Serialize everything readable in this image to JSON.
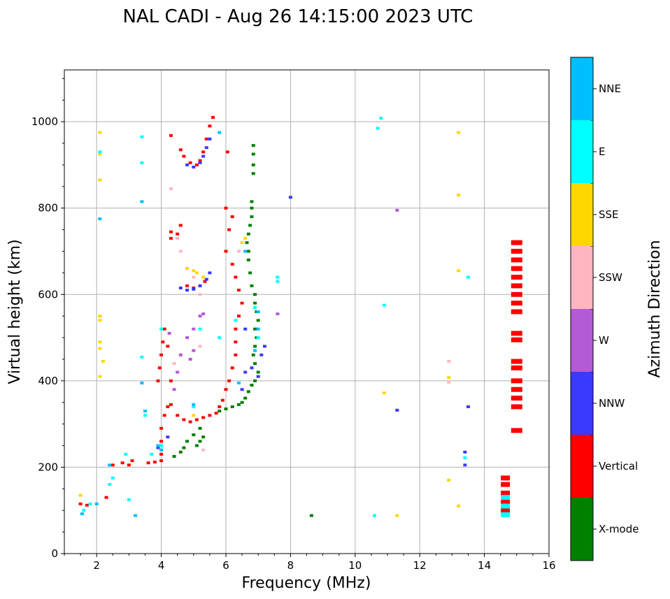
{
  "chart_data": {
    "type": "scatter",
    "title": "NAL CADI - Aug 26 14:15:00 2023 UTC",
    "xlabel": "Frequency (MHz)",
    "ylabel": "Virtual height (km)",
    "xlim": [
      1,
      16
    ],
    "ylim": [
      0,
      1120
    ],
    "xticks": [
      2,
      4,
      6,
      8,
      10,
      12,
      14,
      16
    ],
    "yticks": [
      0,
      200,
      400,
      600,
      800,
      1000
    ],
    "grid": true,
    "colorbar": {
      "title": "Azimuth Direction",
      "categories": [
        {
          "name": "X-mode",
          "color": "#008000"
        },
        {
          "name": "Vertical",
          "color": "#ff0000"
        },
        {
          "name": "NNW",
          "color": "#3a3aff"
        },
        {
          "name": "W",
          "color": "#b35ad6"
        },
        {
          "name": "SSW",
          "color": "#ffb6c1"
        },
        {
          "name": "SSE",
          "color": "#ffd700"
        },
        {
          "name": "E",
          "color": "#00ffff"
        },
        {
          "name": "NNE",
          "color": "#00bfff"
        }
      ]
    },
    "series": [
      {
        "name": "X-mode",
        "points": [
          [
            4.4,
            225
          ],
          [
            4.6,
            235
          ],
          [
            4.7,
            245
          ],
          [
            4.8,
            260
          ],
          [
            5.0,
            275
          ],
          [
            5.2,
            290
          ],
          [
            5.3,
            270
          ],
          [
            5.2,
            260
          ],
          [
            5.1,
            250
          ],
          [
            5.8,
            330
          ],
          [
            6.0,
            335
          ],
          [
            6.2,
            340
          ],
          [
            6.4,
            345
          ],
          [
            6.5,
            350
          ],
          [
            6.6,
            360
          ],
          [
            6.7,
            375
          ],
          [
            6.8,
            390
          ],
          [
            6.9,
            400
          ],
          [
            7.0,
            420
          ],
          [
            6.9,
            440
          ],
          [
            6.85,
            460
          ],
          [
            6.9,
            480
          ],
          [
            6.95,
            500
          ],
          [
            6.9,
            520
          ],
          [
            7.0,
            540
          ],
          [
            6.95,
            560
          ],
          [
            6.9,
            580
          ],
          [
            6.9,
            600
          ],
          [
            6.8,
            620
          ],
          [
            6.75,
            650
          ],
          [
            6.7,
            680
          ],
          [
            6.7,
            700
          ],
          [
            6.65,
            720
          ],
          [
            6.7,
            740
          ],
          [
            6.75,
            760
          ],
          [
            6.8,
            780
          ],
          [
            6.8,
            800
          ],
          [
            6.8,
            815
          ],
          [
            6.85,
            880
          ],
          [
            6.85,
            900
          ],
          [
            6.85,
            925
          ],
          [
            6.85,
            945
          ],
          [
            8.65,
            88
          ]
        ]
      },
      {
        "name": "Vertical",
        "points": [
          [
            1.5,
            115
          ],
          [
            1.7,
            112
          ],
          [
            2.3,
            130
          ],
          [
            2.5,
            205
          ],
          [
            2.8,
            210
          ],
          [
            3.0,
            205
          ],
          [
            3.1,
            215
          ],
          [
            3.6,
            210
          ],
          [
            3.8,
            212
          ],
          [
            4.0,
            215
          ],
          [
            4.0,
            230
          ],
          [
            4.0,
            260
          ],
          [
            4.0,
            290
          ],
          [
            4.1,
            320
          ],
          [
            4.2,
            340
          ],
          [
            4.3,
            345
          ],
          [
            4.5,
            320
          ],
          [
            4.7,
            310
          ],
          [
            4.9,
            305
          ],
          [
            5.1,
            310
          ],
          [
            5.3,
            315
          ],
          [
            5.5,
            320
          ],
          [
            5.7,
            325
          ],
          [
            5.8,
            340
          ],
          [
            5.9,
            355
          ],
          [
            6.0,
            380
          ],
          [
            6.1,
            400
          ],
          [
            6.2,
            430
          ],
          [
            6.3,
            460
          ],
          [
            6.3,
            490
          ],
          [
            6.3,
            520
          ],
          [
            6.4,
            550
          ],
          [
            6.5,
            580
          ],
          [
            6.4,
            610
          ],
          [
            6.3,
            640
          ],
          [
            6.2,
            670
          ],
          [
            6.0,
            700
          ],
          [
            6.0,
            800
          ],
          [
            6.1,
            750
          ],
          [
            6.2,
            780
          ],
          [
            3.9,
            400
          ],
          [
            3.95,
            430
          ],
          [
            4.0,
            460
          ],
          [
            4.05,
            490
          ],
          [
            4.1,
            520
          ],
          [
            4.2,
            480
          ],
          [
            4.3,
            400
          ],
          [
            4.3,
            745
          ],
          [
            4.3,
            730
          ],
          [
            4.5,
            740
          ],
          [
            4.6,
            760
          ],
          [
            4.6,
            935
          ],
          [
            4.7,
            920
          ],
          [
            4.9,
            905
          ],
          [
            5.1,
            900
          ],
          [
            5.2,
            910
          ],
          [
            5.3,
            930
          ],
          [
            5.4,
            960
          ],
          [
            5.5,
            990
          ],
          [
            5.6,
            1010
          ],
          [
            4.8,
            620
          ],
          [
            5.0,
            615
          ],
          [
            5.2,
            620
          ],
          [
            5.35,
            630
          ],
          [
            4.3,
            968
          ],
          [
            6.05,
            930
          ],
          [
            15.0,
            285
          ],
          [
            15.0,
            340
          ],
          [
            15.0,
            360
          ],
          [
            15.0,
            380
          ],
          [
            15.0,
            400
          ],
          [
            15.0,
            430
          ],
          [
            15.0,
            445
          ],
          [
            15.0,
            495
          ],
          [
            15.0,
            510
          ],
          [
            15.0,
            560
          ],
          [
            15.0,
            580
          ],
          [
            15.0,
            600
          ],
          [
            15.0,
            620
          ],
          [
            15.0,
            640
          ],
          [
            15.0,
            660
          ],
          [
            15.0,
            680
          ],
          [
            15.0,
            700
          ],
          [
            15.0,
            720
          ],
          [
            14.65,
            100
          ],
          [
            14.65,
            120
          ],
          [
            14.65,
            140
          ],
          [
            14.65,
            160
          ],
          [
            14.65,
            175
          ]
        ]
      },
      {
        "name": "NNW",
        "points": [
          [
            3.9,
            245
          ],
          [
            4.2,
            270
          ],
          [
            4.6,
            615
          ],
          [
            4.8,
            610
          ],
          [
            5.0,
            612
          ],
          [
            5.2,
            620
          ],
          [
            5.4,
            635
          ],
          [
            5.5,
            650
          ],
          [
            4.8,
            900
          ],
          [
            5.0,
            895
          ],
          [
            5.2,
            905
          ],
          [
            5.3,
            920
          ],
          [
            5.4,
            940
          ],
          [
            5.5,
            960
          ],
          [
            6.5,
            380
          ],
          [
            6.6,
            420
          ],
          [
            6.8,
            430
          ],
          [
            7.0,
            410
          ],
          [
            7.1,
            460
          ],
          [
            7.2,
            480
          ],
          [
            6.6,
            520
          ],
          [
            13.5,
            340
          ],
          [
            13.4,
            235
          ],
          [
            13.4,
            205
          ],
          [
            11.3,
            332
          ],
          [
            8.0,
            825
          ]
        ]
      },
      {
        "name": "W",
        "points": [
          [
            4.4,
            380
          ],
          [
            4.5,
            420
          ],
          [
            4.6,
            460
          ],
          [
            4.8,
            500
          ],
          [
            5.0,
            520
          ],
          [
            5.2,
            550
          ],
          [
            5.3,
            555
          ],
          [
            5.0,
            470
          ],
          [
            4.9,
            450
          ],
          [
            11.3,
            795
          ],
          [
            7.6,
            555
          ],
          [
            4.25,
            510
          ]
        ]
      },
      {
        "name": "SSW",
        "points": [
          [
            4.3,
            845
          ],
          [
            4.5,
            730
          ],
          [
            4.6,
            700
          ],
          [
            4.8,
            660
          ],
          [
            5.0,
            640
          ],
          [
            5.2,
            600
          ],
          [
            5.2,
            480
          ],
          [
            4.4,
            440
          ],
          [
            12.9,
            445
          ],
          [
            12.9,
            397
          ],
          [
            6.4,
            700
          ],
          [
            5.3,
            240
          ]
        ]
      },
      {
        "name": "SSE",
        "points": [
          [
            1.5,
            135
          ],
          [
            2.1,
            975
          ],
          [
            2.1,
            925
          ],
          [
            2.1,
            865
          ],
          [
            2.1,
            550
          ],
          [
            2.1,
            540
          ],
          [
            2.1,
            490
          ],
          [
            2.1,
            475
          ],
          [
            2.2,
            445
          ],
          [
            2.1,
            410
          ],
          [
            4.8,
            660
          ],
          [
            5.0,
            655
          ],
          [
            5.1,
            650
          ],
          [
            5.3,
            640
          ],
          [
            6.5,
            720
          ],
          [
            6.6,
            730
          ],
          [
            5.0,
            320
          ],
          [
            12.9,
            408
          ],
          [
            12.9,
            170
          ],
          [
            13.2,
            975
          ],
          [
            13.2,
            830
          ],
          [
            13.2,
            655
          ],
          [
            13.2,
            110
          ],
          [
            11.3,
            88
          ],
          [
            10.9,
            372
          ]
        ]
      },
      {
        "name": "E",
        "points": [
          [
            1.6,
            100
          ],
          [
            1.8,
            115
          ],
          [
            2.1,
            930
          ],
          [
            2.4,
            160
          ],
          [
            2.5,
            175
          ],
          [
            2.9,
            230
          ],
          [
            3.0,
            125
          ],
          [
            3.4,
            965
          ],
          [
            3.4,
            905
          ],
          [
            3.4,
            455
          ],
          [
            3.5,
            320
          ],
          [
            3.7,
            230
          ],
          [
            4.0,
            250
          ],
          [
            4.0,
            520
          ],
          [
            5.0,
            340
          ],
          [
            5.2,
            520
          ],
          [
            5.8,
            500
          ],
          [
            6.3,
            540
          ],
          [
            6.9,
            570
          ],
          [
            7.0,
            500
          ],
          [
            7.6,
            640
          ],
          [
            7.6,
            630
          ],
          [
            10.8,
            1008
          ],
          [
            10.7,
            985
          ],
          [
            10.9,
            575
          ],
          [
            10.6,
            88
          ],
          [
            13.5,
            640
          ],
          [
            13.4,
            222
          ],
          [
            14.65,
            90
          ],
          [
            14.65,
            110
          ],
          [
            14.65,
            130
          ]
        ]
      },
      {
        "name": "NNE",
        "points": [
          [
            1.55,
            92
          ],
          [
            2.0,
            115
          ],
          [
            2.4,
            205
          ],
          [
            3.2,
            88
          ],
          [
            3.4,
            815
          ],
          [
            3.4,
            395
          ],
          [
            3.5,
            330
          ],
          [
            3.9,
            250
          ],
          [
            4.0,
            240
          ],
          [
            5.0,
            345
          ],
          [
            5.8,
            975
          ],
          [
            6.4,
            395
          ],
          [
            6.6,
            700
          ],
          [
            6.9,
            470
          ],
          [
            7.0,
            520
          ],
          [
            7.0,
            560
          ],
          [
            2.1,
            775
          ]
        ]
      }
    ]
  }
}
